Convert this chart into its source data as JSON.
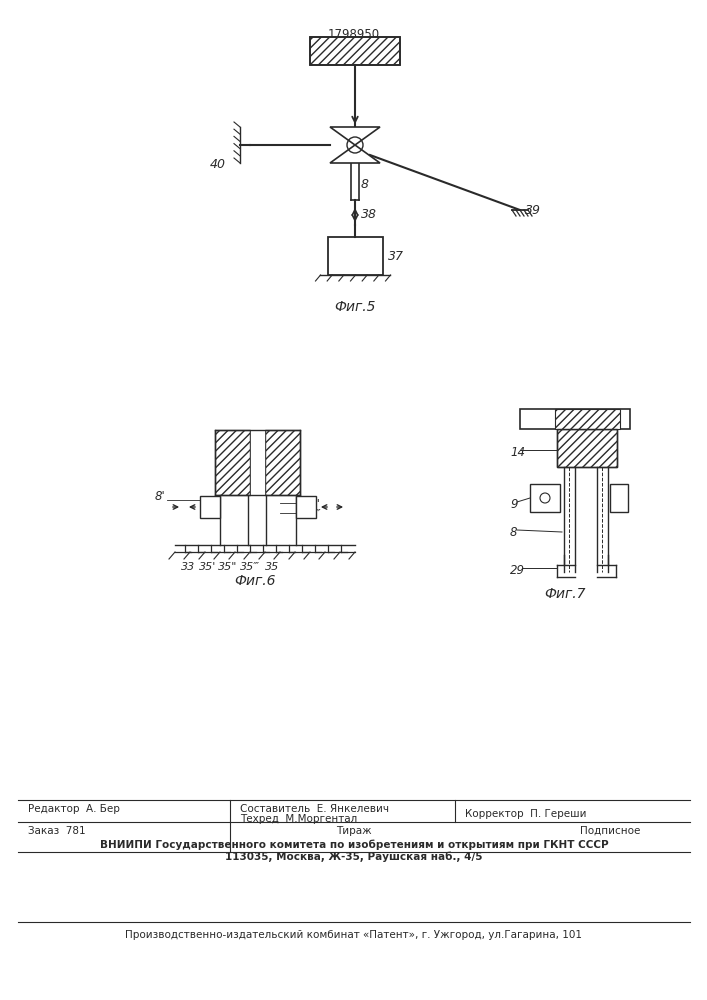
{
  "patent_number": "1798950",
  "fig5_caption": "Фиг.5",
  "fig6_caption": "Фиг.6",
  "fig7_caption": "Фиг.7",
  "line_color": "#2a2a2a",
  "footer_line1_left": "Редактор  А. Бер",
  "footer_line1_mid1": "Составитель  Е. Янкелевич",
  "footer_line1_mid2": "Техред  М.Моргентал",
  "footer_line1_right": "Корректор  П. Гереши",
  "footer_line2_left": "Заказ  781",
  "footer_line2_mid": "Тираж",
  "footer_line2_right": "Подписное",
  "footer_line3": "ВНИИПИ Государственного комитета по изобретениям и открытиям при ГКНТ СССР",
  "footer_line4": "113035, Москва, Ж-35, Раушская наб., 4/5",
  "footer_line5": "Производственно-издательский комбинат «Патент», г. Ужгород, ул.Гагарина, 101"
}
